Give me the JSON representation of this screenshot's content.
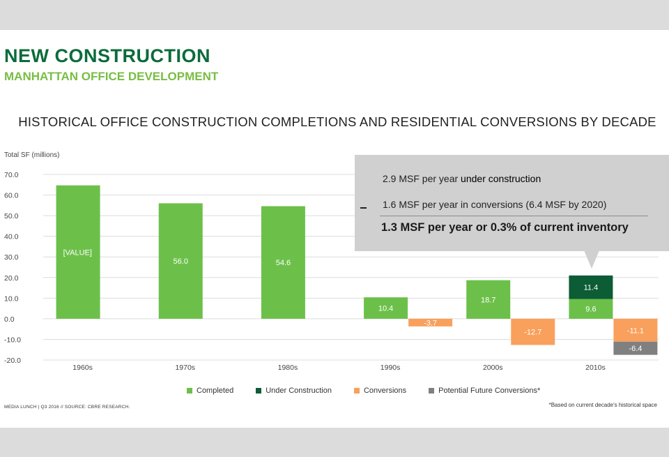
{
  "header": {
    "title": "NEW CONSTRUCTION",
    "subtitle": "MANHATTAN OFFICE DEVELOPMENT"
  },
  "chart_data": {
    "type": "bar",
    "title": "HISTORICAL OFFICE CONSTRUCTION COMPLETIONS AND RESIDENTIAL CONVERSIONS BY DECADE",
    "ylabel": "Total SF (millions)",
    "ylim": [
      -20,
      70
    ],
    "yticks": [
      "70.0",
      "60.0",
      "50.0",
      "40.0",
      "30.0",
      "20.0",
      "10.0",
      "0.0",
      "-10.0",
      "-20.0"
    ],
    "categories": [
      "1960s",
      "1970s",
      "1980s",
      "1990s",
      "2000s",
      "2010s"
    ],
    "grid": true,
    "legend_position": "bottom",
    "series": [
      {
        "name": "Completed",
        "color": "#6cc04a",
        "values": [
          64.7,
          56.0,
          54.6,
          10.4,
          18.7,
          9.6
        ],
        "labels": [
          "[VALUE]",
          "56.0",
          "54.6",
          "10.4",
          "18.7",
          "9.6"
        ]
      },
      {
        "name": "Under Construction",
        "color": "#0c5c36",
        "values": [
          null,
          null,
          null,
          null,
          null,
          11.4
        ],
        "labels": [
          "",
          "",
          "",
          "",
          "",
          "11.4"
        ]
      },
      {
        "name": "Conversions",
        "color": "#f9a05c",
        "values": [
          null,
          null,
          null,
          -3.7,
          -12.7,
          -11.1
        ],
        "labels": [
          "",
          "",
          "",
          "-3.7",
          "-12.7",
          "-11.1"
        ]
      },
      {
        "name": "Potential Future Conversions*",
        "color": "#808080",
        "values": [
          null,
          null,
          null,
          null,
          null,
          -6.4
        ],
        "labels": [
          "",
          "",
          "",
          "",
          "",
          "-6.4"
        ]
      }
    ]
  },
  "callout": {
    "line1_prefix": "2.9 MSF per year ",
    "line1_bold": "under construction",
    "line2": "1.6 MSF per year in conversions (6.4 MSF by 2020)",
    "line3": "1.3 MSF per year or 0.3% of current inventory"
  },
  "footer": {
    "left": "MEDIA LUNCH | Q3 2016   //  SOURCE: CBRE RESEARCH.",
    "right": "*Based on current decade's historical space"
  }
}
